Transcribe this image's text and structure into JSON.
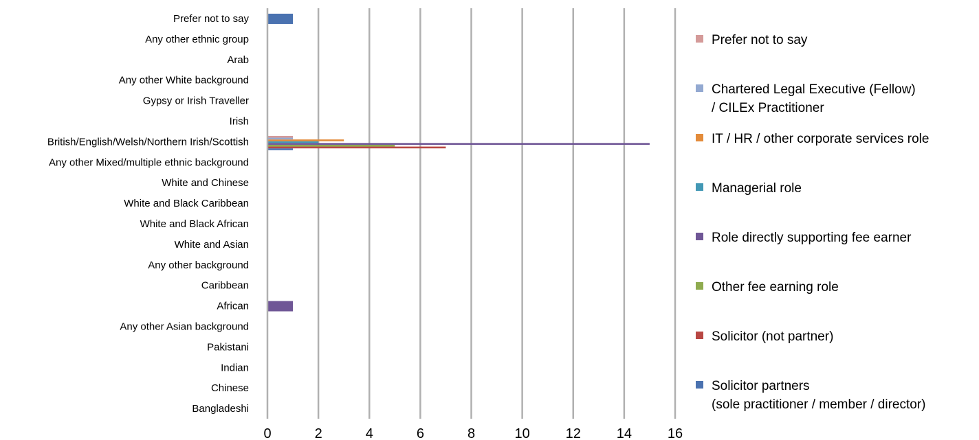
{
  "chart_data": {
    "type": "bar",
    "orientation": "horizontal",
    "categories": [
      "Prefer not to say",
      "Any other ethnic group",
      "Arab",
      "Any other White background",
      "Gypsy or Irish Traveller",
      "Irish",
      "British/English/Welsh/Northern Irish/Scottish",
      "Any other Mixed/multiple ethnic background",
      "White and Chinese",
      "White and Black Caribbean",
      "White and Black African",
      "White and Asian",
      "Any other background",
      "Caribbean",
      "African",
      "Any other Asian background",
      "Pakistani",
      "Indian",
      "Chinese",
      "Bangladeshi"
    ],
    "series": [
      {
        "name": "Solicitor partners (sole practitioner / member / director)",
        "legend_lines": [
          "Solicitor partners",
          "(sole practitioner / member / director)"
        ],
        "color": "#4a72b0",
        "values": [
          1,
          0,
          0,
          0,
          0,
          0,
          1,
          0,
          0,
          0,
          0,
          0,
          0,
          0,
          0,
          0,
          0,
          0,
          0,
          0
        ]
      },
      {
        "name": "Solicitor (not partner)",
        "legend_lines": [
          "Solicitor (not partner)"
        ],
        "color": "#b84743",
        "values": [
          0,
          0,
          0,
          0,
          0,
          0,
          7,
          0,
          0,
          0,
          0,
          0,
          0,
          0,
          0,
          0,
          0,
          0,
          0,
          0
        ]
      },
      {
        "name": "Other fee earning role",
        "legend_lines": [
          "Other fee earning role"
        ],
        "color": "#8fab4f",
        "values": [
          0,
          0,
          0,
          0,
          0,
          0,
          5,
          0,
          0,
          0,
          0,
          0,
          0,
          0,
          0,
          0,
          0,
          0,
          0,
          0
        ]
      },
      {
        "name": "Role directly supporting fee earner",
        "legend_lines": [
          "Role directly supporting fee earner"
        ],
        "color": "#6f5696",
        "values": [
          0,
          0,
          0,
          0,
          0,
          0,
          15,
          0,
          0,
          0,
          0,
          0,
          0,
          0,
          1,
          0,
          0,
          0,
          0,
          0
        ]
      },
      {
        "name": "Managerial role",
        "legend_lines": [
          "Managerial role"
        ],
        "color": "#4298b5",
        "values": [
          0,
          0,
          0,
          0,
          0,
          0,
          2,
          0,
          0,
          0,
          0,
          0,
          0,
          0,
          0,
          0,
          0,
          0,
          0,
          0
        ]
      },
      {
        "name": "IT / HR / other corporate services role",
        "legend_lines": [
          "IT / HR / other corporate services role"
        ],
        "color": "#e38b3a",
        "values": [
          0,
          0,
          0,
          0,
          0,
          0,
          3,
          0,
          0,
          0,
          0,
          0,
          0,
          0,
          0,
          0,
          0,
          0,
          0,
          0
        ]
      },
      {
        "name": "Chartered Legal Executive (Fellow) / CILEx Practitioner",
        "legend_lines": [
          "Chartered Legal Executive (Fellow)",
          "/ CILEx Practitioner"
        ],
        "color": "#93a9d1",
        "values": [
          0,
          0,
          0,
          0,
          0,
          0,
          1,
          0,
          0,
          0,
          0,
          0,
          0,
          0,
          0,
          0,
          0,
          0,
          0,
          0
        ]
      },
      {
        "name": "Prefer not to say",
        "legend_lines": [
          "Prefer not to say"
        ],
        "color": "#d49a99",
        "values": [
          0,
          0,
          0,
          0,
          0,
          0,
          1,
          0,
          0,
          0,
          0,
          0,
          0,
          0,
          0,
          0,
          0,
          0,
          0,
          0
        ]
      }
    ],
    "legend_order": [
      7,
      6,
      5,
      4,
      3,
      2,
      1,
      0
    ],
    "xlim": [
      0,
      16
    ],
    "xticks": [
      0,
      2,
      4,
      6,
      8,
      10,
      12,
      14,
      16
    ],
    "grid": "vertical",
    "gridline_color": "#b0b0b0",
    "legend_position": "right",
    "title": "",
    "xlabel": "",
    "ylabel": ""
  }
}
